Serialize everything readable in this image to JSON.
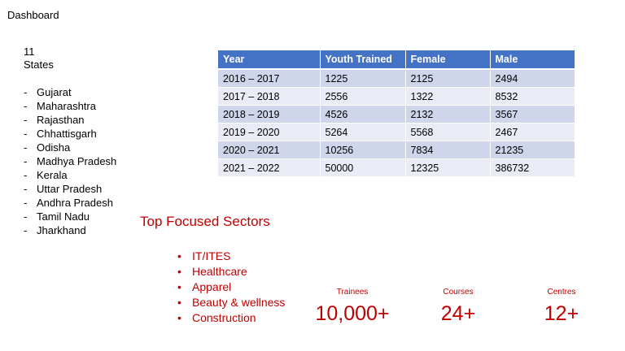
{
  "title": "Dashboard",
  "states": {
    "count": "11",
    "label": "States",
    "items": [
      "Gujarat",
      "Maharashtra",
      "Rajasthan",
      "Chhattisgarh",
      "Odisha",
      "Madhya Pradesh",
      "Kerala",
      "Uttar Pradesh",
      "Andhra Pradesh",
      "Tamil Nadu",
      "Jharkhand"
    ]
  },
  "table": {
    "header_color": "#4472c4",
    "columns": [
      "Year",
      "Youth Trained",
      "Female",
      "Male"
    ],
    "rows": [
      [
        "2016 – 2017",
        "1225",
        "2125",
        "2494"
      ],
      [
        "2017 – 2018",
        "2556",
        "1322",
        "8532"
      ],
      [
        "2018 – 2019",
        "4526",
        "2132",
        "3567"
      ],
      [
        "2019 – 2020",
        "5264",
        "5568",
        "2467"
      ],
      [
        "2020 – 2021",
        "10256",
        "7834",
        "21235"
      ],
      [
        "2021 – 2022",
        "50000",
        "12325",
        "386732"
      ]
    ]
  },
  "sectors": {
    "heading": "Top Focused Sectors",
    "color": "#c00000",
    "items": [
      "IT/ITES",
      "Healthcare",
      "Apparel",
      "Beauty & wellness",
      "Construction"
    ]
  },
  "stats": {
    "trainees": {
      "label": "Trainees",
      "value": "10,000+"
    },
    "courses": {
      "label": "Courses",
      "value": "24+"
    },
    "centres": {
      "label": "Centres",
      "value": "12+"
    }
  }
}
